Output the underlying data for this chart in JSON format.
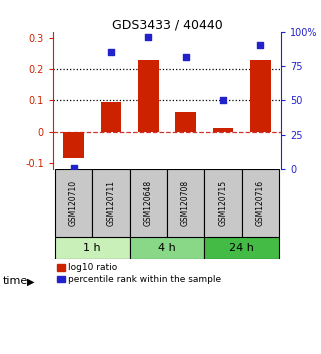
{
  "title": "GDS3433 / 40440",
  "samples": [
    "GSM120710",
    "GSM120711",
    "GSM120648",
    "GSM120708",
    "GSM120715",
    "GSM120716"
  ],
  "log10_ratio": [
    -0.085,
    0.095,
    0.23,
    0.062,
    0.012,
    0.23
  ],
  "percentile_rank": [
    1.0,
    85.5,
    96.0,
    81.5,
    50.0,
    90.5
  ],
  "groups": [
    {
      "label": "1 h",
      "indices": [
        0,
        1
      ],
      "color": "#c8f0b8"
    },
    {
      "label": "4 h",
      "indices": [
        2,
        3
      ],
      "color": "#88d888"
    },
    {
      "label": "24 h",
      "indices": [
        4,
        5
      ],
      "color": "#44bb44"
    }
  ],
  "bar_color": "#cc2200",
  "dot_color": "#2222cc",
  "ylim_left": [
    -0.12,
    0.32
  ],
  "ylim_right": [
    0,
    100
  ],
  "yticks_left": [
    -0.1,
    0.0,
    0.1,
    0.2,
    0.3
  ],
  "yticks_right": [
    0,
    25,
    50,
    75,
    100
  ],
  "hlines": [
    0.1,
    0.2
  ],
  "legend_labels": [
    "log10 ratio",
    "percentile rank within the sample"
  ],
  "background_color": "#ffffff",
  "sample_box_color": "#c8c8c8",
  "time_label": "time"
}
